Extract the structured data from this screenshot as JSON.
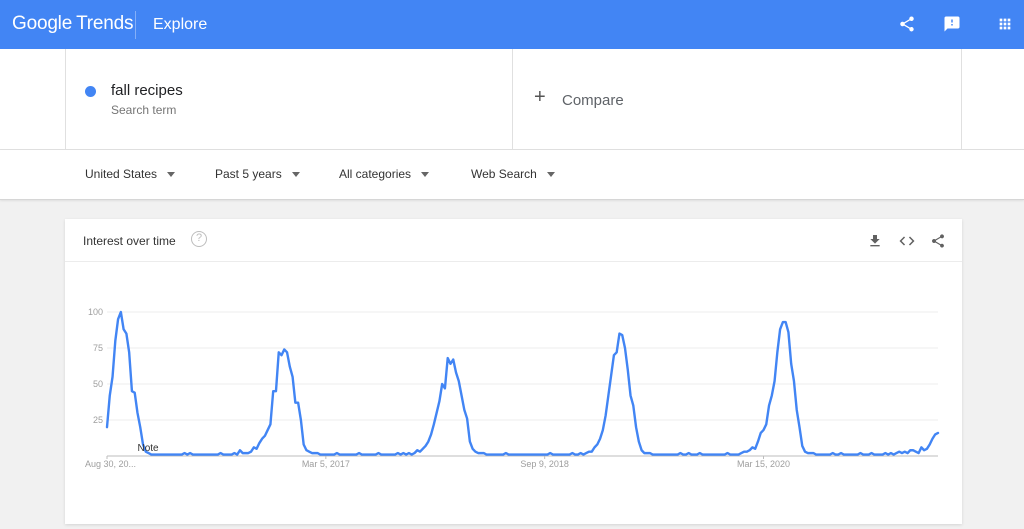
{
  "header": {
    "logo_google": "Google",
    "logo_trends": "Trends",
    "explore": "Explore",
    "icons": [
      "share-icon",
      "feedback-icon",
      "apps-icon"
    ]
  },
  "term": {
    "label": "fall recipes",
    "sublabel": "Search term",
    "color": "#4285f4"
  },
  "compare": {
    "plus": "+",
    "label": "Compare"
  },
  "filters": {
    "region": "United States",
    "time": "Past 5 years",
    "category": "All categories",
    "property": "Web Search"
  },
  "card": {
    "title": "Interest over time",
    "help": "?",
    "icons": [
      "download-icon",
      "embed-icon",
      "share-icon"
    ]
  },
  "chart_data": {
    "type": "line",
    "title": "Interest over time",
    "ylim": [
      0,
      100
    ],
    "y_ticks": [
      25,
      50,
      75,
      100
    ],
    "x_tick_labels": [
      "Aug 30, 20...",
      "Mar 5, 2017",
      "Sep 9, 2018",
      "Mar 15, 2020"
    ],
    "x_tick_weeks": [
      0,
      79,
      158,
      237
    ],
    "grid": true,
    "annotation": {
      "text": "Note",
      "week": 11
    },
    "series": [
      {
        "color": "#4285f4",
        "values": [
          20,
          42,
          55,
          80,
          95,
          100,
          88,
          85,
          72,
          45,
          44,
          30,
          20,
          8,
          3,
          2,
          1,
          1,
          1,
          1,
          1,
          1,
          1,
          1,
          1,
          1,
          1,
          1,
          2,
          1,
          2,
          1,
          1,
          1,
          1,
          1,
          1,
          1,
          1,
          1,
          1,
          2,
          1,
          1,
          1,
          1,
          2,
          1,
          4,
          2,
          2,
          2,
          3,
          6,
          5,
          9,
          12,
          14,
          18,
          22,
          45,
          45,
          72,
          70,
          74,
          72,
          62,
          55,
          37,
          37,
          25,
          8,
          4,
          3,
          2,
          2,
          2,
          1,
          1,
          1,
          1,
          1,
          1,
          2,
          1,
          1,
          1,
          1,
          1,
          1,
          1,
          2,
          1,
          1,
          1,
          1,
          1,
          1,
          2,
          1,
          1,
          1,
          1,
          1,
          1,
          2,
          1,
          2,
          1,
          2,
          1,
          2,
          4,
          3,
          5,
          7,
          10,
          15,
          22,
          30,
          38,
          50,
          47,
          68,
          64,
          67,
          58,
          52,
          42,
          32,
          26,
          10,
          5,
          3,
          2,
          2,
          2,
          1,
          1,
          1,
          1,
          1,
          1,
          1,
          2,
          1,
          1,
          1,
          1,
          1,
          1,
          1,
          1,
          1,
          1,
          1,
          1,
          1,
          1,
          1,
          2,
          1,
          1,
          1,
          1,
          1,
          1,
          1,
          2,
          1,
          1,
          2,
          1,
          2,
          3,
          3,
          6,
          8,
          12,
          18,
          28,
          42,
          56,
          70,
          72,
          85,
          84,
          75,
          60,
          42,
          35,
          20,
          10,
          4,
          2,
          2,
          2,
          1,
          1,
          1,
          1,
          1,
          1,
          1,
          1,
          1,
          1,
          2,
          1,
          1,
          2,
          1,
          1,
          1,
          2,
          1,
          1,
          1,
          1,
          1,
          1,
          1,
          1,
          1,
          2,
          1,
          1,
          1,
          1,
          2,
          3,
          3,
          4,
          6,
          5,
          10,
          16,
          18,
          22,
          35,
          42,
          52,
          72,
          88,
          93,
          93,
          86,
          64,
          52,
          32,
          20,
          7,
          3,
          2,
          2,
          2,
          1,
          1,
          1,
          1,
          1,
          1,
          2,
          1,
          1,
          2,
          1,
          1,
          1,
          1,
          1,
          1,
          2,
          1,
          1,
          1,
          2,
          1,
          1,
          1,
          1,
          2,
          1,
          2,
          1,
          2,
          3,
          2,
          3,
          2,
          4,
          4,
          3,
          2,
          6,
          4,
          5,
          8,
          12,
          15,
          16
        ]
      }
    ]
  }
}
